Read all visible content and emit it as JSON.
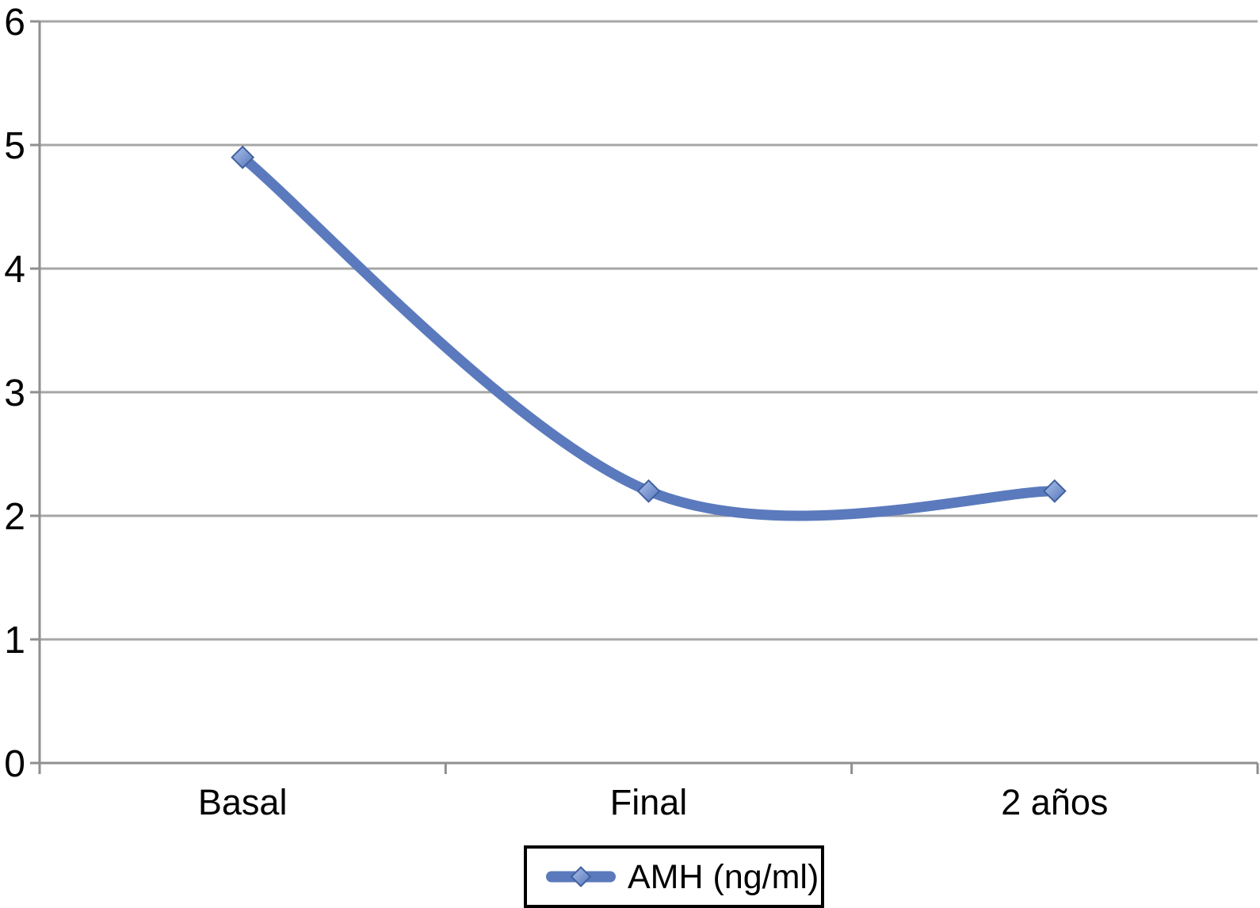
{
  "chart_data": {
    "type": "line",
    "smooth": true,
    "categories": [
      "Basal",
      "Final",
      "2 años"
    ],
    "series": [
      {
        "name": "AMH (ng/ml)",
        "values": [
          4.9,
          2.2,
          2.2
        ]
      }
    ],
    "title": "",
    "xlabel": "",
    "ylabel": "",
    "ylim": [
      0,
      6
    ],
    "yticks": [
      0,
      1,
      2,
      3,
      4,
      5,
      6
    ],
    "grid": true,
    "legend_position": "bottom-center",
    "marker_shape": "diamond"
  },
  "legend": {
    "label": "AMH (ng/ml)"
  },
  "colors": {
    "background": "#ffffff",
    "line": "#5b7abd",
    "marker_light": "#aec3ec",
    "marker_dark": "#5474b9",
    "marker_border": "#40619f",
    "gridline": "#a6a6a6",
    "axis": "#8f8f8f",
    "text": "#000000",
    "legend_border": "#000000",
    "legend_fill": "#ffffff"
  }
}
